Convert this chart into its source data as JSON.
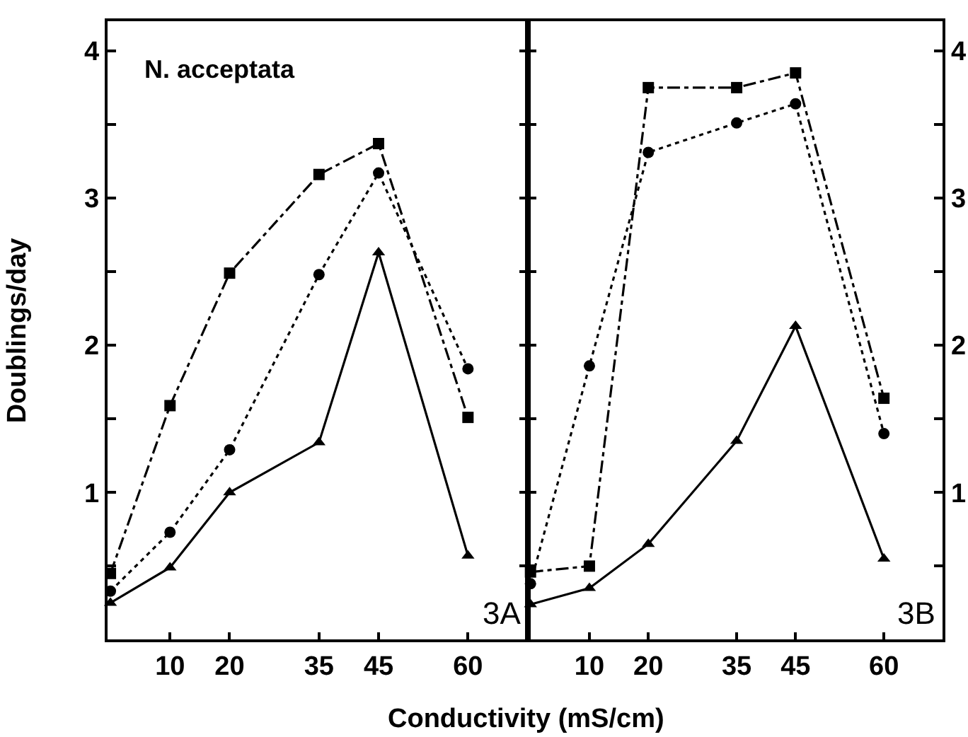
{
  "chart_data": [
    {
      "type": "line",
      "title": "N. acceptata",
      "xlabel": "Conductivity (mS/cm)",
      "ylabel": "Doublings/day",
      "annotations": [
        "3A"
      ],
      "x": [
        0,
        10,
        20,
        35,
        45,
        60
      ],
      "xlim": [
        -0.5,
        70
      ],
      "xticks": [
        10,
        20,
        35,
        45,
        60
      ],
      "ylim": [
        0,
        4.2
      ],
      "yticks": [
        {
          "value": 0.5,
          "label": null
        },
        1,
        {
          "value": 1.5,
          "label": null
        },
        2,
        {
          "value": 2.5,
          "label": null
        },
        3,
        {
          "value": 3.5,
          "label": null
        },
        4
      ],
      "series": [
        {
          "color": "#000000",
          "marker": "square",
          "line_style": "dashed",
          "values": [
            0.45,
            1.59,
            2.49,
            3.16,
            3.37,
            1.51
          ]
        },
        {
          "color": "#000000",
          "marker": "circle",
          "line_style": "dotted",
          "values": [
            0.33,
            0.73,
            1.29,
            2.48,
            3.17,
            1.84
          ]
        },
        {
          "color": "#000000",
          "marker": "triangle",
          "line_style": "solid",
          "values": [
            0.25,
            0.49,
            1.0,
            1.34,
            2.63,
            0.57
          ]
        }
      ]
    },
    {
      "type": "line",
      "annotations": [
        "3B"
      ],
      "x": [
        0,
        10,
        20,
        35,
        45,
        60
      ],
      "xlim": [
        -0.5,
        70
      ],
      "xticks": [
        10,
        20,
        35,
        45,
        60
      ],
      "ylim": [
        0,
        4.2
      ],
      "yticks": [
        {
          "value": 0.5,
          "label": null
        },
        1,
        {
          "value": 1.5,
          "label": null
        },
        2,
        {
          "value": 2.5,
          "label": null
        },
        3,
        {
          "value": 3.5,
          "label": null
        },
        4
      ],
      "series": [
        {
          "color": "#000000",
          "marker": "square",
          "line_style": "dashed",
          "values": [
            0.46,
            0.5,
            3.75,
            3.75,
            3.85,
            1.64
          ]
        },
        {
          "color": "#000000",
          "marker": "circle",
          "line_style": "dotted",
          "values": [
            0.38,
            1.86,
            3.31,
            3.51,
            3.64,
            1.4
          ]
        },
        {
          "color": "#000000",
          "marker": "triangle",
          "line_style": "solid",
          "values": [
            0.24,
            0.35,
            0.65,
            1.35,
            2.13,
            0.55
          ]
        }
      ]
    }
  ]
}
